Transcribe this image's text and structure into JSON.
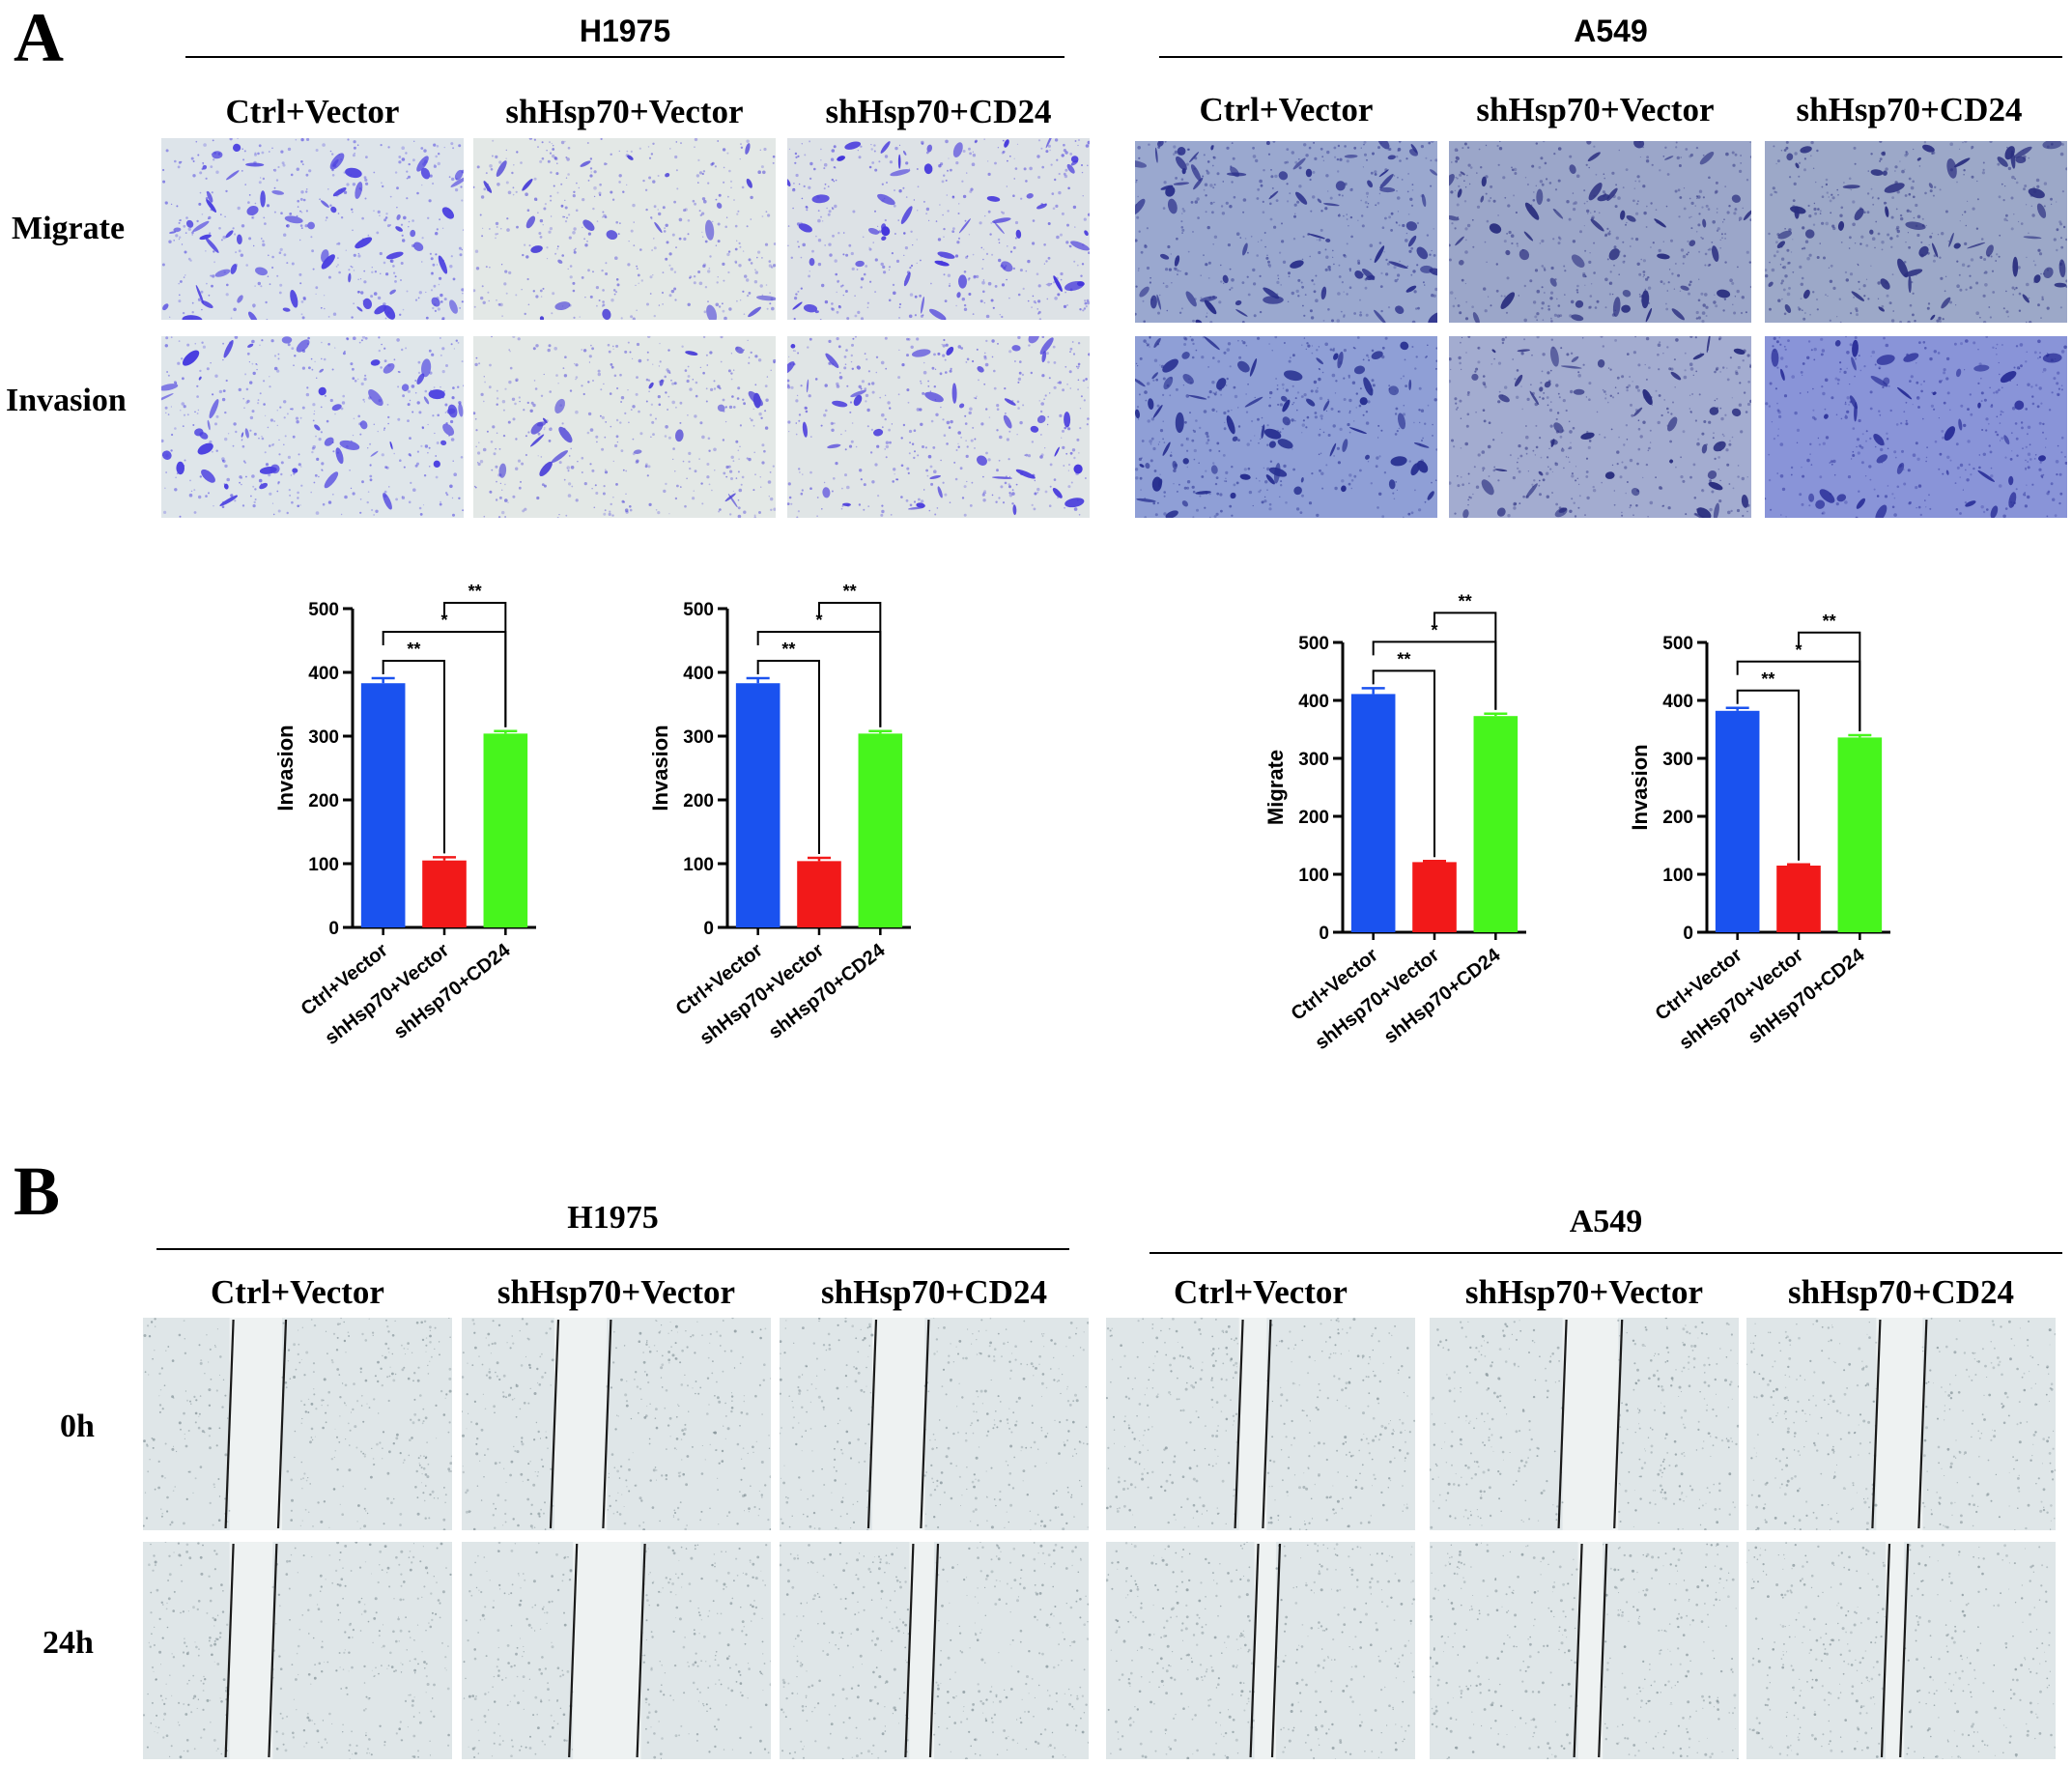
{
  "panel_a": {
    "letter": "A",
    "h1975": {
      "title": "H1975"
    },
    "a549": {
      "title": "A549"
    },
    "conditions": [
      "Ctrl+Vector",
      "shHsp70+Vector",
      "shHsp70+CD24"
    ],
    "rows": [
      "Migrate",
      "Invasion"
    ]
  },
  "panel_b": {
    "letter": "B",
    "h1975": {
      "title": "H1975"
    },
    "a549": {
      "title": "A549"
    },
    "conditions": [
      "Ctrl+Vector",
      "shHsp70+Vector",
      "shHsp70+CD24"
    ],
    "rows": [
      "0h",
      "24h"
    ]
  },
  "chart_data": [
    {
      "type": "bar",
      "categories": [
        "Ctrl+Vector",
        "shHsp70+Vector",
        "shHsp70+CD24"
      ],
      "values": [
        383,
        105,
        304
      ],
      "errors": [
        8,
        5,
        4
      ],
      "colors": [
        "#1a52ef",
        "#f21919",
        "#47f51c"
      ],
      "ylabel": "Invasion",
      "ylim": [
        0,
        500
      ],
      "yticks": [
        "0",
        "100",
        "200",
        "300",
        "400",
        "500"
      ],
      "significance": [
        {
          "from": 0,
          "to": 1,
          "label": "**"
        },
        {
          "from": 0,
          "to": 2,
          "label": "*"
        },
        {
          "from": 1,
          "to": 2,
          "label": "**"
        }
      ]
    },
    {
      "type": "bar",
      "categories": [
        "Ctrl+Vector",
        "shHsp70+Vector",
        "shHsp70+CD24"
      ],
      "values": [
        383,
        104,
        304
      ],
      "errors": [
        8,
        5,
        4
      ],
      "colors": [
        "#1a52ef",
        "#f21919",
        "#47f51c"
      ],
      "ylabel": "Invasion",
      "ylim": [
        0,
        500
      ],
      "yticks": [
        "0",
        "100",
        "200",
        "300",
        "400",
        "500"
      ],
      "significance": [
        {
          "from": 0,
          "to": 1,
          "label": "**"
        },
        {
          "from": 0,
          "to": 2,
          "label": "*"
        },
        {
          "from": 1,
          "to": 2,
          "label": "**"
        }
      ]
    },
    {
      "type": "bar",
      "categories": [
        "Ctrl+Vector",
        "shHsp70+Vector",
        "shHsp70+CD24"
      ],
      "values": [
        411,
        121,
        373
      ],
      "errors": [
        10,
        2,
        4
      ],
      "colors": [
        "#1a52ef",
        "#f21919",
        "#47f51c"
      ],
      "ylabel": "Migrate",
      "ylim": [
        0,
        500
      ],
      "yticks": [
        "0",
        "100",
        "200",
        "300",
        "400",
        "500"
      ],
      "significance": [
        {
          "from": 0,
          "to": 1,
          "label": "**"
        },
        {
          "from": 0,
          "to": 2,
          "label": "*"
        },
        {
          "from": 1,
          "to": 2,
          "label": "**"
        }
      ]
    },
    {
      "type": "bar",
      "categories": [
        "Ctrl+Vector",
        "shHsp70+Vector",
        "shHsp70+CD24"
      ],
      "values": [
        382,
        115,
        336
      ],
      "errors": [
        5,
        2,
        4
      ],
      "colors": [
        "#1a52ef",
        "#f21919",
        "#47f51c"
      ],
      "ylabel": "Invasion",
      "ylim": [
        0,
        500
      ],
      "yticks": [
        "0",
        "100",
        "200",
        "300",
        "400",
        "500"
      ],
      "significance": [
        {
          "from": 0,
          "to": 1,
          "label": "**"
        },
        {
          "from": 0,
          "to": 2,
          "label": "*"
        },
        {
          "from": 1,
          "to": 2,
          "label": "**"
        }
      ]
    }
  ]
}
